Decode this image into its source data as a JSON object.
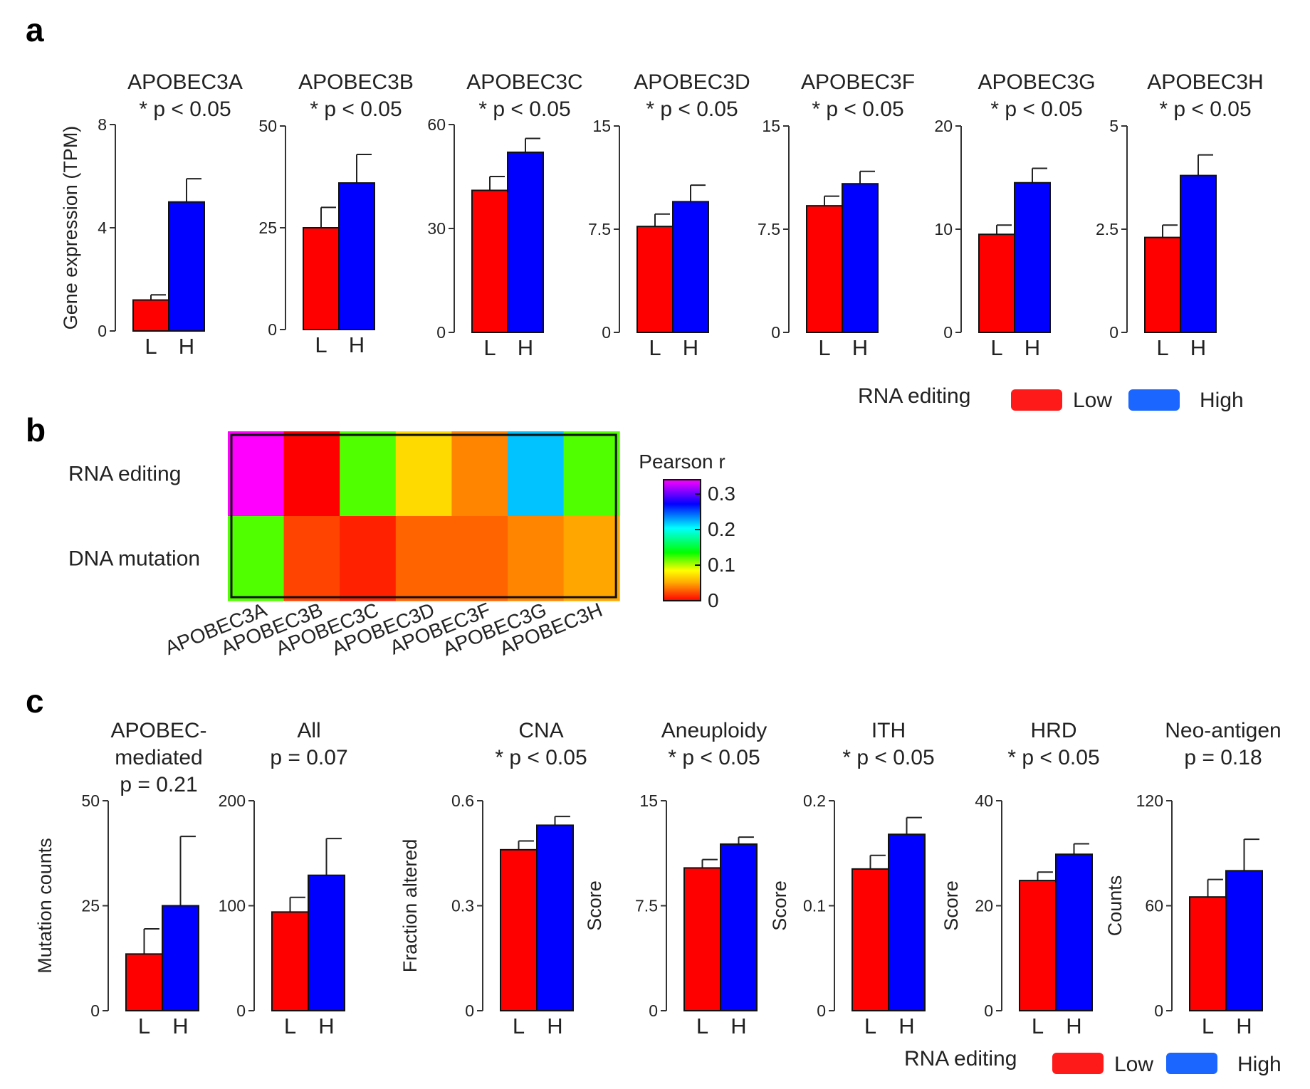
{
  "panel_labels": {
    "a": "a",
    "b": "b",
    "c": "c"
  },
  "colors": {
    "low": "#ff0000",
    "high": "#0000ff",
    "legend_low": "#ff1a1a",
    "legend_high": "#1a66ff",
    "axis": "#333333"
  },
  "legend_a": {
    "title": "RNA editing",
    "low": "Low",
    "high": "High"
  },
  "legend_c": {
    "title": "RNA editing",
    "low": "Low",
    "high": "High"
  },
  "chart_data": [
    {
      "type": "bar",
      "panel": "a",
      "ylabel": "Gene expression (TPM)",
      "categories": [
        "L",
        "H"
      ],
      "series_names": [
        "Low",
        "High"
      ],
      "subplots": [
        {
          "title": [
            "APOBEC3A",
            "* p < 0.05"
          ],
          "values": [
            1.2,
            5.0
          ],
          "errors": [
            0.2,
            0.9
          ],
          "ylim": [
            0,
            8
          ],
          "yticks": [
            0,
            4,
            8
          ],
          "tick_labels": [
            "0",
            "4",
            "8"
          ]
        },
        {
          "title": [
            "APOBEC3B",
            "* p < 0.05"
          ],
          "values": [
            25,
            36
          ],
          "errors": [
            5,
            7
          ],
          "ylim": [
            0,
            50
          ],
          "yticks": [
            0,
            25,
            50
          ],
          "tick_labels": [
            "0",
            "25",
            "50"
          ]
        },
        {
          "title": [
            "APOBEC3C",
            "* p < 0.05"
          ],
          "values": [
            41,
            52
          ],
          "errors": [
            4,
            4
          ],
          "ylim": [
            0,
            60
          ],
          "yticks": [
            0,
            30,
            60
          ],
          "tick_labels": [
            "0",
            "30",
            "60"
          ]
        },
        {
          "title": [
            "APOBEC3D",
            "* p < 0.05"
          ],
          "values": [
            7.7,
            9.5
          ],
          "errors": [
            0.9,
            1.2
          ],
          "ylim": [
            0,
            15
          ],
          "yticks": [
            0,
            7.5,
            15
          ],
          "tick_labels": [
            "0",
            "7.5",
            "15"
          ]
        },
        {
          "title": [
            "APOBEC3F",
            "* p < 0.05"
          ],
          "values": [
            9.2,
            10.8
          ],
          "errors": [
            0.7,
            0.9
          ],
          "ylim": [
            0,
            15
          ],
          "yticks": [
            0,
            7.5,
            15
          ],
          "tick_labels": [
            "0",
            "7.5",
            "15"
          ]
        },
        {
          "title": [
            "APOBEC3G",
            "* p < 0.05"
          ],
          "values": [
            9.5,
            14.5
          ],
          "errors": [
            0.9,
            1.4
          ],
          "ylim": [
            0,
            20
          ],
          "yticks": [
            0,
            10,
            20
          ],
          "tick_labels": [
            "0",
            "10",
            "20"
          ]
        },
        {
          "title": [
            "APOBEC3H",
            "* p < 0.05"
          ],
          "values": [
            2.3,
            3.8
          ],
          "errors": [
            0.3,
            0.5
          ],
          "ylim": [
            0,
            5
          ],
          "yticks": [
            0,
            2.5,
            5
          ],
          "tick_labels": [
            "0",
            "2.5",
            "5"
          ]
        }
      ]
    },
    {
      "type": "heatmap",
      "panel": "b",
      "rows": [
        "RNA editing",
        "DNA mutation"
      ],
      "columns": [
        "APOBEC3A",
        "APOBEC3B",
        "APOBEC3C",
        "APOBEC3D",
        "APOBEC3F",
        "APOBEC3G",
        "APOBEC3H"
      ],
      "values": [
        [
          0.34,
          0.0,
          0.12,
          0.07,
          0.04,
          0.22,
          0.12
        ],
        [
          0.12,
          0.02,
          0.01,
          0.03,
          0.03,
          0.04,
          0.05
        ]
      ],
      "colorbar": {
        "title": "Pearson r",
        "range": [
          0,
          0.34
        ],
        "ticks": [
          0,
          0.1,
          0.2,
          0.3
        ],
        "tick_labels": [
          "0",
          "0.1",
          "0.2",
          "0.3"
        ]
      }
    },
    {
      "type": "bar",
      "panel": "c",
      "categories": [
        "L",
        "H"
      ],
      "series_names": [
        "Low",
        "High"
      ],
      "subplots": [
        {
          "title": [
            "APOBEC-",
            "mediated",
            "p = 0.21"
          ],
          "ylabel": "Mutation counts",
          "values": [
            13.5,
            25
          ],
          "errors": [
            6,
            16.5
          ],
          "ylim": [
            0,
            50
          ],
          "yticks": [
            0,
            25,
            50
          ],
          "tick_labels": [
            "0",
            "25",
            "50"
          ]
        },
        {
          "title": [
            "All",
            "p = 0.07"
          ],
          "ylabel": "",
          "values": [
            94,
            129
          ],
          "errors": [
            14,
            35
          ],
          "ylim": [
            0,
            200
          ],
          "yticks": [
            0,
            100,
            200
          ],
          "tick_labels": [
            "0",
            "100",
            "200"
          ]
        },
        {
          "title": [
            "CNA",
            "* p < 0.05"
          ],
          "ylabel": "Fraction altered",
          "values": [
            0.46,
            0.53
          ],
          "errors": [
            0.025,
            0.025
          ],
          "ylim": [
            0,
            0.6
          ],
          "yticks": [
            0,
            0.3,
            0.6
          ],
          "tick_labels": [
            "0",
            "0.3",
            "0.6"
          ]
        },
        {
          "title": [
            "Aneuploidy",
            "* p < 0.05"
          ],
          "ylabel": "Score",
          "values": [
            10.2,
            11.9
          ],
          "errors": [
            0.6,
            0.5
          ],
          "ylim": [
            0,
            15
          ],
          "yticks": [
            0,
            7.5,
            15
          ],
          "tick_labels": [
            "0",
            "7.5",
            "15"
          ]
        },
        {
          "title": [
            "ITH",
            "* p < 0.05"
          ],
          "ylabel": "Score",
          "values": [
            0.135,
            0.168
          ],
          "errors": [
            0.013,
            0.016
          ],
          "ylim": [
            0,
            0.2
          ],
          "yticks": [
            0,
            0.1,
            0.2
          ],
          "tick_labels": [
            "0",
            "0.1",
            "0.2"
          ]
        },
        {
          "title": [
            "HRD",
            "* p < 0.05"
          ],
          "ylabel": "Score",
          "values": [
            24.8,
            29.8
          ],
          "errors": [
            1.6,
            2.0
          ],
          "ylim": [
            0,
            40
          ],
          "yticks": [
            0,
            20,
            40
          ],
          "tick_labels": [
            "0",
            "20",
            "40"
          ]
        },
        {
          "title": [
            "Neo-antigen",
            "p = 0.18"
          ],
          "ylabel": "Counts",
          "values": [
            65,
            80
          ],
          "errors": [
            10,
            18
          ],
          "ylim": [
            0,
            120
          ],
          "yticks": [
            0,
            60,
            120
          ],
          "tick_labels": [
            "0",
            "60",
            "120"
          ]
        }
      ]
    }
  ]
}
